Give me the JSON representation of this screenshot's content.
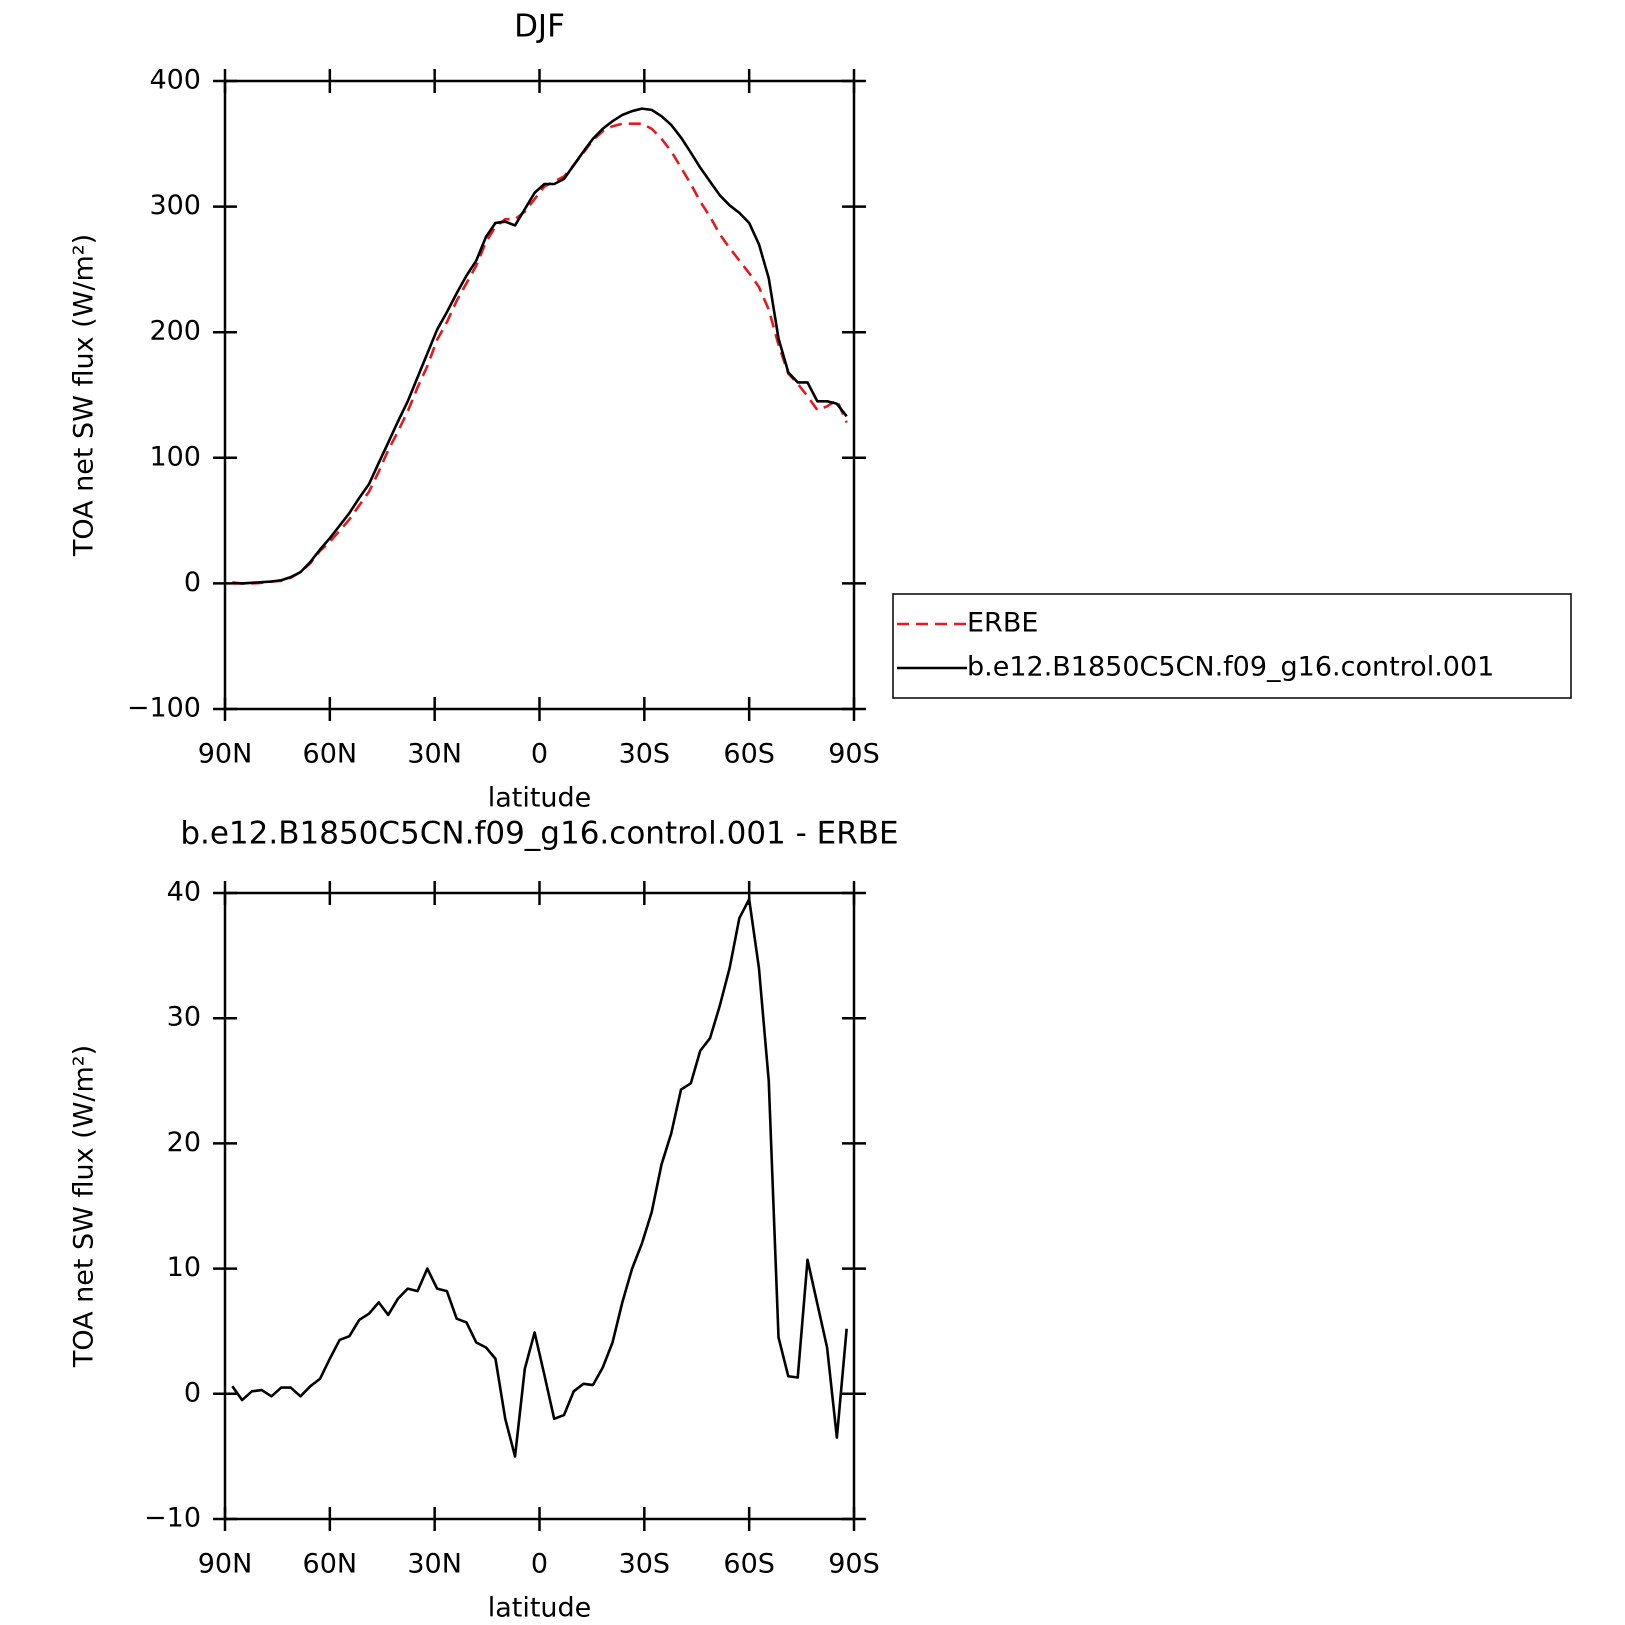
{
  "chart_data": [
    {
      "type": "line",
      "title": "DJF",
      "xlabel": "latitude",
      "ylabel": "TOA net SW flux (W/m²)",
      "x": [
        87.9,
        85.1,
        82.3,
        79.5,
        76.7,
        73.9,
        71.2,
        68.4,
        65.6,
        62.8,
        60.0,
        57.2,
        54.4,
        51.6,
        48.8,
        46.0,
        43.3,
        40.5,
        37.7,
        34.9,
        32.1,
        29.3,
        26.5,
        23.7,
        20.9,
        18.1,
        15.3,
        12.6,
        9.8,
        7.0,
        4.2,
        1.4,
        -1.4,
        -4.2,
        -7.0,
        -9.8,
        -12.6,
        -15.3,
        -18.1,
        -20.9,
        -23.7,
        -26.5,
        -29.3,
        -32.1,
        -34.9,
        -37.7,
        -40.5,
        -43.3,
        -46.0,
        -48.8,
        -51.6,
        -54.4,
        -57.2,
        -60.0,
        -62.8,
        -65.6,
        -68.4,
        -71.2,
        -73.9,
        -76.7,
        -79.5,
        -82.3,
        -85.1,
        -87.9
      ],
      "xlim": [
        90,
        -90
      ],
      "xticks": [
        {
          "value": 90,
          "label": "90N"
        },
        {
          "value": 60,
          "label": "60N"
        },
        {
          "value": 30,
          "label": "30N"
        },
        0,
        {
          "value": -30,
          "label": "30S"
        },
        {
          "value": -60,
          "label": "60S"
        },
        {
          "value": -90,
          "label": "90S"
        }
      ],
      "ylim": [
        -100,
        400
      ],
      "yticks": [
        {
          "value": -100,
          "label": "−100"
        },
        0,
        100,
        200,
        300,
        400
      ],
      "legend": "right",
      "series": [
        {
          "name": "ERBE",
          "color": "#e41a1c",
          "dashed": true,
          "values": [
            0,
            0,
            0,
            0.5,
            1.5,
            2,
            4.5,
            9,
            16,
            26,
            33,
            42,
            51,
            62,
            73,
            89,
            106,
            121,
            137,
            156,
            173,
            194,
            208,
            225,
            239,
            253,
            272,
            284,
            290,
            290,
            296,
            306,
            316,
            320,
            324,
            333,
            343,
            353,
            360,
            364,
            366,
            366,
            366,
            362,
            354,
            344,
            331,
            318,
            304,
            292,
            278,
            267,
            257,
            247,
            236,
            218,
            190,
            167,
            159,
            149,
            138,
            141,
            146,
            128
          ]
        },
        {
          "name": "b.e12.B1850C5CN.f09_g16.control.001",
          "color": "#000000",
          "dashed": false,
          "values": [
            0.6,
            0,
            0.5,
            1,
            1.5,
            2.5,
            5,
            9,
            17,
            27,
            36,
            46,
            56,
            68,
            79,
            96,
            112,
            129,
            145,
            164,
            183,
            202,
            216,
            231,
            245,
            257,
            276,
            287,
            288,
            285,
            298,
            311,
            318,
            318,
            322,
            333,
            344,
            354,
            362,
            368,
            373,
            376,
            378,
            377,
            372,
            365,
            355,
            343,
            331,
            320,
            309,
            301,
            295,
            287,
            270,
            243,
            195,
            168,
            160,
            160,
            145,
            145,
            143,
            133
          ]
        }
      ]
    },
    {
      "type": "line",
      "title": "b.e12.B1850C5CN.f09_g16.control.001 - ERBE",
      "xlabel": "latitude",
      "ylabel": "TOA net SW flux (W/m²)",
      "x": [
        87.9,
        85.1,
        82.3,
        79.5,
        76.7,
        73.9,
        71.2,
        68.4,
        65.6,
        62.8,
        60.0,
        57.2,
        54.4,
        51.6,
        48.8,
        46.0,
        43.3,
        40.5,
        37.7,
        34.9,
        32.1,
        29.3,
        26.5,
        23.7,
        20.9,
        18.1,
        15.3,
        12.6,
        9.8,
        7.0,
        4.2,
        1.4,
        -1.4,
        -4.2,
        -7.0,
        -9.8,
        -12.6,
        -15.3,
        -18.1,
        -20.9,
        -23.7,
        -26.5,
        -29.3,
        -32.1,
        -34.9,
        -37.7,
        -40.5,
        -43.3,
        -46.0,
        -48.8,
        -51.6,
        -54.4,
        -57.2,
        -60.0,
        -62.8,
        -65.6,
        -68.4,
        -71.2,
        -73.9,
        -76.7,
        -79.5,
        -82.3,
        -85.1,
        -87.9
      ],
      "xlim": [
        90,
        -90
      ],
      "xticks": [
        {
          "value": 90,
          "label": "90N"
        },
        {
          "value": 60,
          "label": "60N"
        },
        {
          "value": 30,
          "label": "30N"
        },
        0,
        {
          "value": -30,
          "label": "30S"
        },
        {
          "value": -60,
          "label": "60S"
        },
        {
          "value": -90,
          "label": "90S"
        }
      ],
      "ylim": [
        -10,
        40
      ],
      "yticks": [
        {
          "value": -10,
          "label": "−10"
        },
        0,
        10,
        20,
        30,
        40
      ],
      "series": [
        {
          "color": "#000000",
          "dashed": false,
          "values": [
            0.6,
            -0.5,
            0.2,
            0.3,
            -0.2,
            0.5,
            0.5,
            -0.2,
            0.6,
            1.2,
            2.8,
            4.3,
            4.6,
            5.9,
            6.4,
            7.3,
            6.3,
            7.6,
            8.4,
            8.2,
            10.0,
            8.4,
            8.2,
            6.0,
            5.7,
            4.1,
            3.7,
            2.8,
            -2.0,
            -5.0,
            2.0,
            4.9,
            1.5,
            -2.0,
            -1.7,
            0.2,
            0.8,
            0.7,
            2.1,
            4.1,
            7.3,
            10.0,
            12.0,
            14.5,
            18.3,
            20.8,
            24.3,
            24.8,
            27.4,
            28.4,
            31.0,
            34.0,
            38.0,
            39.5,
            34.0,
            25.0,
            4.5,
            1.4,
            1.3,
            10.7,
            7.2,
            3.7,
            -3.5,
            5.2
          ]
        }
      ]
    }
  ]
}
